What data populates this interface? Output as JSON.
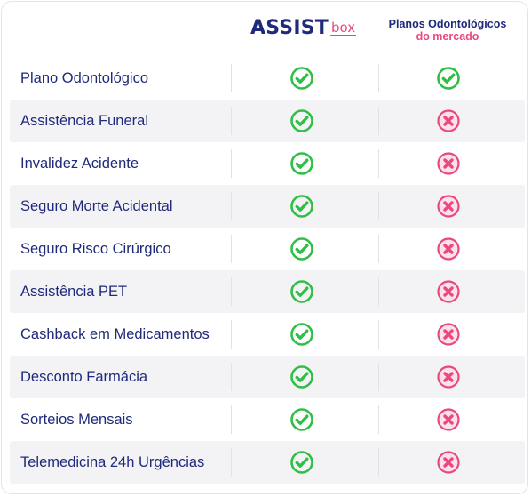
{
  "header": {
    "brand_main": "ASSIST",
    "brand_sub": "box",
    "market_line1": "Planos Odontológicos",
    "market_line2": "do mercado"
  },
  "rows": [
    {
      "label": "Plano Odontológico",
      "assistbox": "check",
      "market": "check"
    },
    {
      "label": "Assistência Funeral",
      "assistbox": "check",
      "market": "cross"
    },
    {
      "label": "Invalidez Acidente",
      "assistbox": "check",
      "market": "cross"
    },
    {
      "label": "Seguro Morte Acidental",
      "assistbox": "check",
      "market": "cross"
    },
    {
      "label": "Seguro Risco Cirúrgico",
      "assistbox": "check",
      "market": "cross"
    },
    {
      "label": "Assistência PET",
      "assistbox": "check",
      "market": "cross"
    },
    {
      "label": "Cashback em Medicamentos",
      "assistbox": "check",
      "market": "cross"
    },
    {
      "label": "Desconto Farmácia",
      "assistbox": "check",
      "market": "cross"
    },
    {
      "label": "Sorteios Mensais",
      "assistbox": "check",
      "market": "cross"
    },
    {
      "label": "Telemedicina 24h Urgências",
      "assistbox": "check",
      "market": "cross"
    }
  ],
  "icons": {
    "check": "check-circle-icon",
    "cross": "x-circle-icon"
  },
  "colors": {
    "navy": "#1f2a7a",
    "pink": "#e8497f",
    "check_green": "#2fbf46",
    "cross_pink": "#e8497f",
    "cross_fill": "#fbe1ea",
    "row_shade": "#f3f3f6"
  }
}
